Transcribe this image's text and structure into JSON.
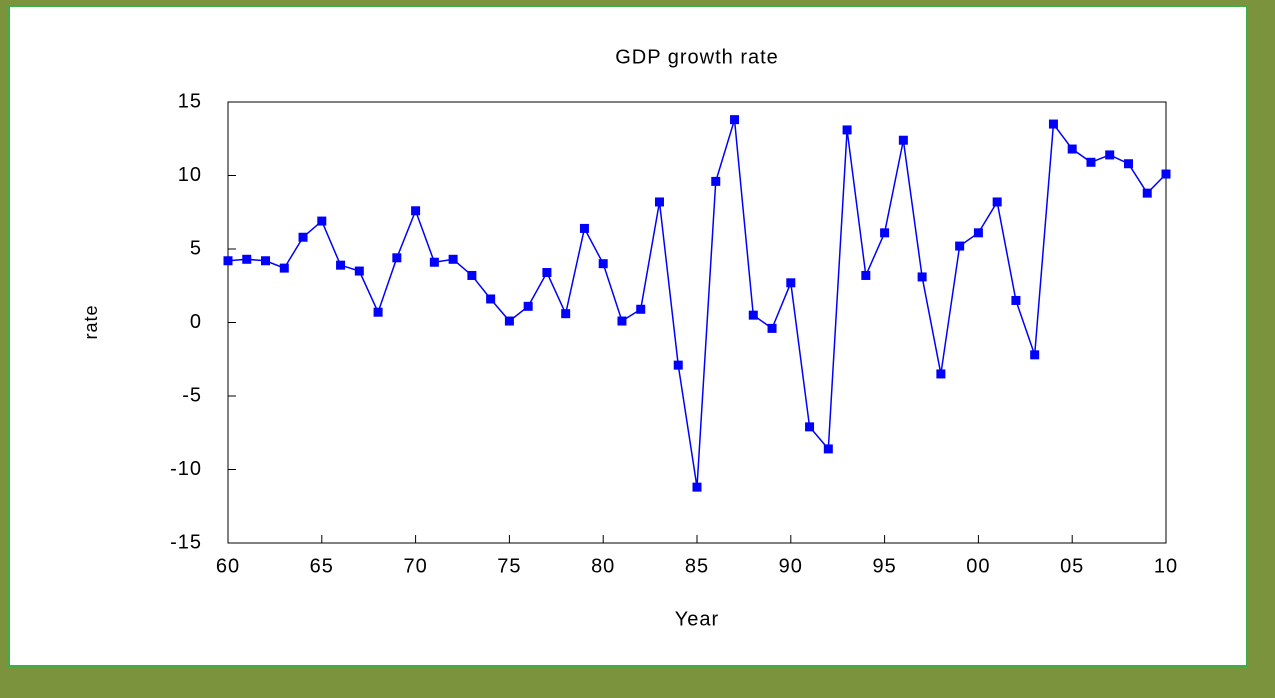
{
  "chart_data": {
    "type": "line",
    "title": "GDP growth rate",
    "x_label": "Year",
    "y_label": "rate",
    "categories": [
      "60",
      null,
      null,
      null,
      null,
      "65",
      null,
      null,
      null,
      null,
      "70",
      null,
      null,
      null,
      null,
      "75",
      null,
      null,
      null,
      null,
      "80",
      null,
      null,
      null,
      null,
      "85",
      null,
      null,
      null,
      null,
      "90",
      null,
      null,
      null,
      null,
      "95",
      null,
      null,
      null,
      null,
      "00",
      null,
      null,
      null,
      null,
      "05",
      null,
      null,
      null,
      null,
      "10"
    ],
    "series": [
      {
        "color": "#0000ff",
        "values": [
          4.2,
          4.3,
          4.2,
          3.7,
          5.8,
          6.9,
          3.9,
          3.5,
          0.7,
          4.4,
          7.6,
          4.1,
          4.3,
          3.2,
          1.6,
          0.1,
          1.1,
          3.4,
          0.6,
          6.4,
          4.0,
          0.1,
          0.9,
          8.2,
          -2.9,
          -11.2,
          9.6,
          13.8,
          0.5,
          -0.4,
          2.7,
          -7.1,
          -8.6,
          13.1,
          3.2,
          6.1,
          12.4,
          3.1,
          -3.5,
          5.2,
          6.1,
          8.2,
          1.5,
          -2.2,
          13.5,
          11.8,
          10.9,
          11.4,
          10.8,
          8.8,
          10.1
        ]
      }
    ],
    "ylim": [
      -15,
      15
    ],
    "yticks": [
      -15,
      -10,
      -5,
      0,
      5,
      10,
      15
    ],
    "grid": false
  }
}
